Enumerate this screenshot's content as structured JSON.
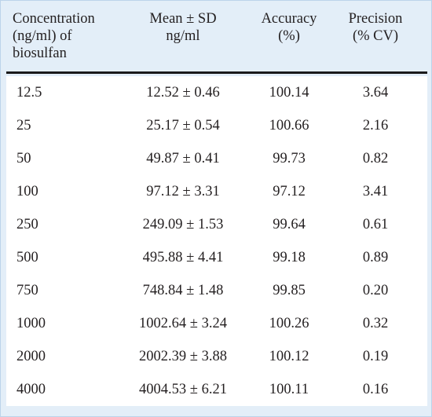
{
  "table": {
    "headers": [
      [
        "Concentration",
        "(ng/ml) of",
        "biosulfan"
      ],
      [
        "Mean ± SD",
        "ng/ml"
      ],
      [
        "Accuracy",
        "(%)"
      ],
      [
        "Precision",
        "(% CV)"
      ]
    ],
    "rows": [
      [
        "12.5",
        "12.52 ± 0.46",
        "100.14",
        "3.64"
      ],
      [
        "25",
        "25.17 ± 0.54",
        "100.66",
        "2.16"
      ],
      [
        "50",
        "49.87 ± 0.41",
        "99.73",
        "0.82"
      ],
      [
        "100",
        "97.12 ± 3.31",
        "97.12",
        "3.41"
      ],
      [
        "250",
        "249.09 ± 1.53",
        "99.64",
        "0.61"
      ],
      [
        "500",
        "495.88 ± 4.41",
        "99.18",
        "0.89"
      ],
      [
        "750",
        "748.84 ± 1.48",
        "99.85",
        "0.20"
      ],
      [
        "1000",
        "1002.64 ± 3.24",
        "100.26",
        "0.32"
      ],
      [
        "2000",
        "2002.39 ± 3.88",
        "100.12",
        "0.19"
      ],
      [
        "4000",
        "4004.53 ± 6.21",
        "100.11",
        "0.16"
      ]
    ]
  }
}
